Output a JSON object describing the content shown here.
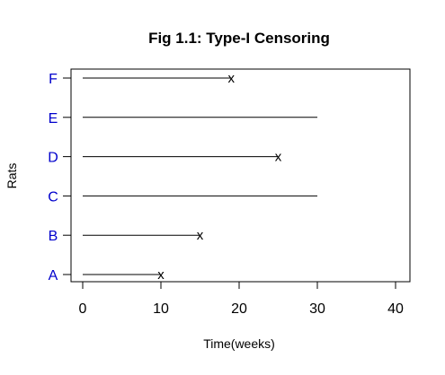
{
  "chart_data": {
    "type": "line",
    "title": "Fig 1.1: Type-I Censoring",
    "xlabel": "Time(weeks)",
    "ylabel": "Rats",
    "xlim": [
      0,
      40
    ],
    "x_ticks": [
      0,
      10,
      20,
      30,
      40
    ],
    "categories": [
      "A",
      "B",
      "C",
      "D",
      "E",
      "F"
    ],
    "series": [
      {
        "rat": "A",
        "start": 0,
        "end": 10,
        "event": true
      },
      {
        "rat": "B",
        "start": 0,
        "end": 15,
        "event": true
      },
      {
        "rat": "C",
        "start": 0,
        "end": 30,
        "event": false
      },
      {
        "rat": "D",
        "start": 0,
        "end": 25,
        "event": true
      },
      {
        "rat": "E",
        "start": 0,
        "end": 30,
        "event": false
      },
      {
        "rat": "F",
        "start": 0,
        "end": 19,
        "event": true
      }
    ],
    "event_marker": "x",
    "grid": false,
    "colors": {
      "category_label": "#0000cc",
      "line": "#000000",
      "marker": "#000000",
      "axis": "#000000"
    }
  }
}
